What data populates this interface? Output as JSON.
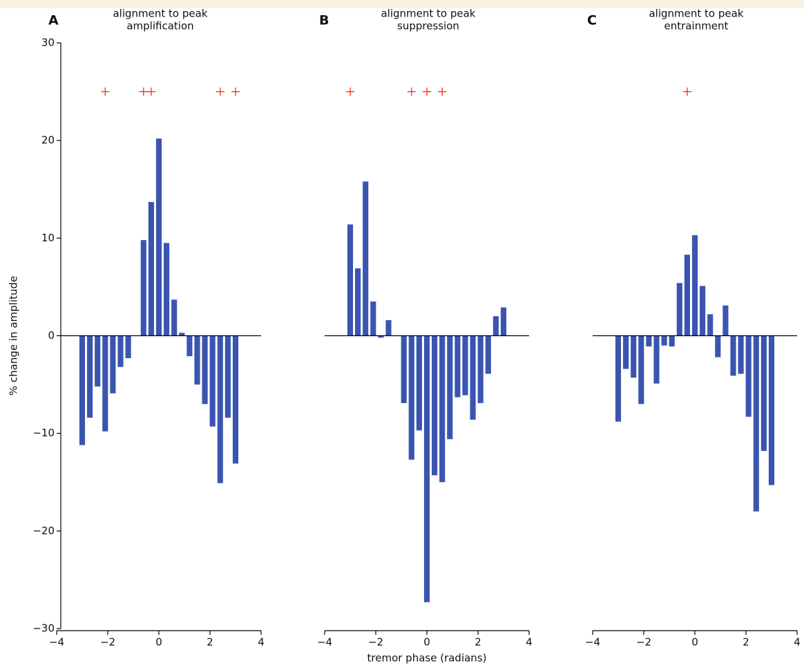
{
  "chart_data": [
    {
      "type": "bar",
      "panel_label": "A",
      "title": [
        "alignment to peak",
        "amplification"
      ],
      "x": [
        -3.0,
        -2.7,
        -2.4,
        -2.1,
        -1.8,
        -1.5,
        -1.2,
        -0.9,
        -0.6,
        -0.3,
        0,
        0.3,
        0.6,
        0.9,
        1.2,
        1.5,
        1.8,
        2.1,
        2.4,
        2.7,
        3.0
      ],
      "values": [
        -11.2,
        -8.4,
        -5.2,
        -9.8,
        -5.9,
        -3.2,
        -2.3,
        0,
        9.8,
        13.7,
        20.2,
        9.5,
        3.7,
        0.3,
        -2.1,
        -5.0,
        -7.0,
        -9.3,
        -15.1,
        -8.4,
        -13.1
      ],
      "color": "#3a55b0",
      "markers": {
        "x": [
          -2.1,
          -0.6,
          -0.3,
          2.4,
          3.0
        ],
        "y": [
          25,
          25,
          25,
          25,
          25
        ],
        "color": "#ff2a1a"
      },
      "xlim": [
        -4,
        4
      ],
      "xticks": [
        {
          "value": -4,
          "label": "−4"
        },
        {
          "value": -2,
          "label": "−2"
        },
        0,
        2,
        4
      ],
      "ylim": [
        -30,
        30
      ],
      "yticks": [
        {
          "value": -30,
          "label": "−30"
        },
        {
          "value": -20,
          "label": "−20"
        },
        {
          "value": -10,
          "label": "−10"
        },
        0,
        10,
        20,
        30
      ],
      "ylabel": "% change in amplitude"
    },
    {
      "type": "bar",
      "panel_label": "B",
      "title": [
        "alignment to peak",
        "suppression"
      ],
      "x": [
        -3.0,
        -2.7,
        -2.4,
        -2.1,
        -1.8,
        -1.5,
        -1.2,
        -0.9,
        -0.6,
        -0.3,
        0,
        0.3,
        0.6,
        0.9,
        1.2,
        1.5,
        1.8,
        2.1,
        2.4,
        2.7,
        3.0
      ],
      "values": [
        11.4,
        6.9,
        15.8,
        3.5,
        -0.2,
        1.6,
        0,
        -6.9,
        -12.7,
        -9.7,
        -27.3,
        -14.3,
        -15.0,
        -10.6,
        -6.3,
        -6.1,
        -8.6,
        -6.9,
        -3.9,
        2.0,
        2.9
      ],
      "color": "#3a55b0",
      "markers": {
        "x": [
          -3.0,
          -0.6,
          0,
          0.6
        ],
        "y": [
          25,
          25,
          25,
          25
        ],
        "color": "#ff2a1a"
      },
      "xlim": [
        -4,
        4
      ],
      "xticks": [
        {
          "value": -4,
          "label": "−4"
        },
        {
          "value": -2,
          "label": "−2"
        },
        0,
        2,
        4
      ],
      "ylim": [
        -30,
        30
      ],
      "xlabel": "tremor phase (radians)"
    },
    {
      "type": "bar",
      "panel_label": "C",
      "title": [
        "alignment to peak",
        "entrainment"
      ],
      "x": [
        -3.0,
        -2.7,
        -2.4,
        -2.1,
        -1.8,
        -1.5,
        -1.2,
        -0.9,
        -0.6,
        -0.3,
        0,
        0.3,
        0.6,
        0.9,
        1.2,
        1.5,
        1.8,
        2.1,
        2.4,
        2.7,
        3.0
      ],
      "values": [
        -8.8,
        -3.4,
        -4.3,
        -7.0,
        -1.1,
        -4.9,
        -1.0,
        -1.1,
        5.4,
        8.3,
        10.3,
        5.1,
        2.2,
        -2.2,
        3.1,
        -4.1,
        -3.9,
        -8.3,
        -18.0,
        -11.8,
        -15.3
      ],
      "color": "#3a55b0",
      "markers": {
        "x": [
          -0.3
        ],
        "y": [
          25
        ],
        "color": "#ff2a1a"
      },
      "xlim": [
        -4,
        4
      ],
      "xticks": [
        {
          "value": -4,
          "label": "−4"
        },
        {
          "value": -2,
          "label": "−2"
        },
        0,
        2,
        4
      ],
      "ylim": [
        -30,
        30
      ]
    }
  ]
}
